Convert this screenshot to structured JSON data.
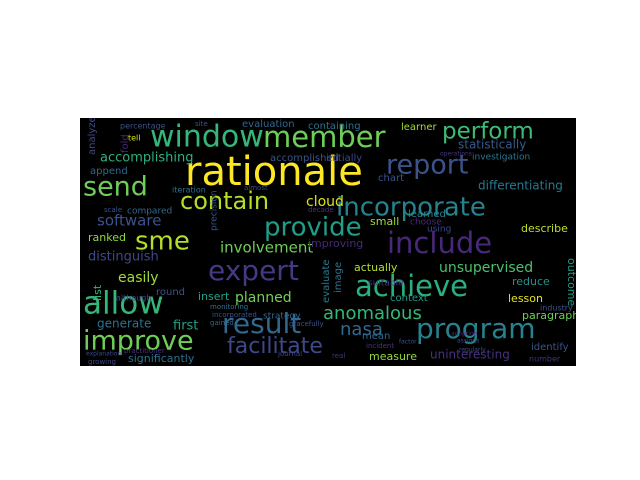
{
  "colors": {
    "background": "#000000",
    "canvas": "#ffffff"
  },
  "words": [
    {
      "text": "rationale",
      "color": "#fde725"
    },
    {
      "text": "window",
      "color": "#35b779"
    },
    {
      "text": "member",
      "color": "#6ece58"
    },
    {
      "text": "perform",
      "color": "#3dbc74"
    },
    {
      "text": "report",
      "color": "#3b528b"
    },
    {
      "text": "send",
      "color": "#6ece58"
    },
    {
      "text": "contain",
      "color": "#b5de2b"
    },
    {
      "text": "incorporate",
      "color": "#26828e"
    },
    {
      "text": "sme",
      "color": "#b5de2b"
    },
    {
      "text": "provide",
      "color": "#1f9e89"
    },
    {
      "text": "include",
      "color": "#482878"
    },
    {
      "text": "expert",
      "color": "#443983"
    },
    {
      "text": "achieve",
      "color": "#2ab07f"
    },
    {
      "text": "allow",
      "color": "#35b779"
    },
    {
      "text": "result",
      "color": "#31688e"
    },
    {
      "text": "program",
      "color": "#26828e"
    },
    {
      "text": "improve",
      "color": "#6ece58"
    },
    {
      "text": "facilitate",
      "color": "#3e4989"
    },
    {
      "text": "anomalous",
      "color": "#35b779"
    },
    {
      "text": "nasa",
      "color": "#31688e"
    },
    {
      "text": "unsupervised",
      "color": "#4ac16d"
    },
    {
      "text": "accomplishing",
      "color": "#2db27d"
    },
    {
      "text": "software",
      "color": "#3b528b"
    },
    {
      "text": "involvement",
      "color": "#6ece58"
    },
    {
      "text": "easily",
      "color": "#a0da39"
    },
    {
      "text": "planned",
      "color": "#73d056"
    },
    {
      "text": "distinguish",
      "color": "#3e4989"
    },
    {
      "text": "cloud",
      "color": "#dde318"
    },
    {
      "text": "statistically",
      "color": "#38598c"
    },
    {
      "text": "differentiating",
      "color": "#2a788e"
    },
    {
      "text": "uninteresting",
      "color": "#46337e"
    },
    {
      "text": "facilitate",
      "color": "#3e4989"
    },
    {
      "text": "first",
      "color": "#1fa188"
    },
    {
      "text": "generate",
      "color": "#2c728e"
    },
    {
      "text": "insert",
      "color": "#20a386"
    },
    {
      "text": "evaluation",
      "color": "#31688e"
    },
    {
      "text": "containing",
      "color": "#2c728e"
    },
    {
      "text": "accomplished",
      "color": "#3b528b"
    },
    {
      "text": "initially",
      "color": "#404688"
    },
    {
      "text": "learner",
      "color": "#a5db36"
    },
    {
      "text": "chart",
      "color": "#3b528b"
    },
    {
      "text": "improving",
      "color": "#482878"
    },
    {
      "text": "describe",
      "color": "#c0df25"
    },
    {
      "text": "actually",
      "color": "#b5de2b"
    },
    {
      "text": "outcome",
      "color": "#1f9e89"
    },
    {
      "text": "reduce",
      "color": "#21918c"
    },
    {
      "text": "lesson",
      "color": "#e5e419"
    },
    {
      "text": "paragraph",
      "color": "#6ece58"
    },
    {
      "text": "identify",
      "color": "#3b528b"
    },
    {
      "text": "number",
      "color": "#46337e"
    },
    {
      "text": "measure",
      "color": "#95d840"
    },
    {
      "text": "significantly",
      "color": "#2c728e"
    },
    {
      "text": "ranked",
      "color": "#8fd744"
    },
    {
      "text": "compared",
      "color": "#31688e"
    },
    {
      "text": "small",
      "color": "#a0da39"
    },
    {
      "text": "context",
      "color": "#1f9e89"
    },
    {
      "text": "learned",
      "color": "#26828e"
    },
    {
      "text": "investigation",
      "color": "#2a788e"
    },
    {
      "text": "append",
      "color": "#31688e"
    },
    {
      "text": "percentage",
      "color": "#3b528b"
    },
    {
      "text": "analyze",
      "color": "#3e4989"
    },
    {
      "text": "fold",
      "color": "#482878"
    },
    {
      "text": "round",
      "color": "#3b528b"
    },
    {
      "text": "list",
      "color": "#35b779"
    },
    {
      "text": "evaluate",
      "color": "#2a788e"
    },
    {
      "text": "image",
      "color": "#2c728e"
    },
    {
      "text": "mean",
      "color": "#31688e"
    },
    {
      "text": "suitable",
      "color": "#46337e"
    },
    {
      "text": "strategy",
      "color": "#31688e"
    },
    {
      "text": "using",
      "color": "#3e4989"
    },
    {
      "text": "choose",
      "color": "#482878"
    },
    {
      "text": "iteration",
      "color": "#2c728e"
    },
    {
      "text": "precision",
      "color": "#3b528b"
    },
    {
      "text": "almost",
      "color": "#3e4989"
    },
    {
      "text": "decade",
      "color": "#46337e"
    },
    {
      "text": "industry",
      "color": "#3b528b"
    },
    {
      "text": "although",
      "color": "#3e4989"
    },
    {
      "text": "monitoring",
      "color": "#2c728e"
    },
    {
      "text": "incorporated",
      "color": "#3b528b"
    },
    {
      "text": "incident",
      "color": "#46337e"
    },
    {
      "text": "gained",
      "color": "#31688e"
    },
    {
      "text": "growing",
      "color": "#3e4989"
    },
    {
      "text": "practitioner",
      "color": "#46337e"
    },
    {
      "text": "scale",
      "color": "#3b528b"
    },
    {
      "text": "tell",
      "color": "#d8e219"
    },
    {
      "text": "site",
      "color": "#3b528b"
    },
    {
      "text": "journal",
      "color": "#3e4989"
    },
    {
      "text": "real",
      "color": "#46337e"
    },
    {
      "text": "factor",
      "color": "#3b528b"
    },
    {
      "text": "assigns",
      "color": "#3e4989"
    },
    {
      "text": "adoption",
      "color": "#482878"
    },
    {
      "text": "regularly",
      "color": "#3e4989"
    },
    {
      "text": "gracefully",
      "color": "#3b528b"
    },
    {
      "text": "operations",
      "color": "#46337e"
    },
    {
      "text": "explanation",
      "color": "#3e4989"
    }
  ]
}
